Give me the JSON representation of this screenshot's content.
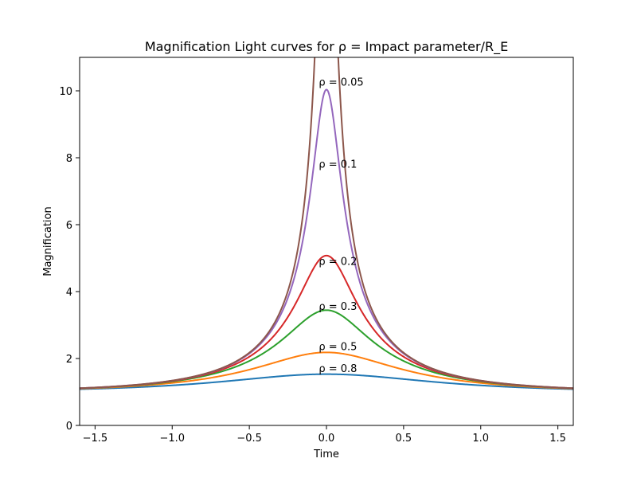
{
  "chart_data": {
    "type": "line",
    "title": "Magnification Light curves for ρ = Impact parameter/R_E",
    "xlabel": "Time",
    "ylabel": "Magnification",
    "xlim": [
      -1.6,
      1.6
    ],
    "ylim": [
      0,
      11
    ],
    "x_ticks": [
      "−1.5",
      "−1.0",
      "−0.5",
      "0.0",
      "0.5",
      "1.0",
      "1.5"
    ],
    "y_ticks": [
      "0",
      "2",
      "4",
      "6",
      "8",
      "10"
    ],
    "grid": false,
    "legend": "none",
    "series": [
      {
        "rho": 0.8,
        "color": "#1f77b4"
      },
      {
        "rho": 0.5,
        "color": "#ff7f0e"
      },
      {
        "rho": 0.3,
        "color": "#2ca02c"
      },
      {
        "rho": 0.2,
        "color": "#d62728"
      },
      {
        "rho": 0.1,
        "color": "#9467bd"
      },
      {
        "rho": 0.05,
        "color": "#8c564b"
      }
    ],
    "annotations": [
      {
        "text": "ρ = 0.05",
        "x": -0.05,
        "y": 10.15
      },
      {
        "text": "ρ = 0.1",
        "x": -0.05,
        "y": 7.7
      },
      {
        "text": "ρ = 0.2",
        "x": -0.05,
        "y": 4.8
      },
      {
        "text": "ρ = 0.3",
        "x": -0.05,
        "y": 3.45
      },
      {
        "text": "ρ = 0.5",
        "x": -0.05,
        "y": 2.25
      },
      {
        "text": "ρ = 0.8",
        "x": -0.05,
        "y": 1.6
      }
    ]
  }
}
